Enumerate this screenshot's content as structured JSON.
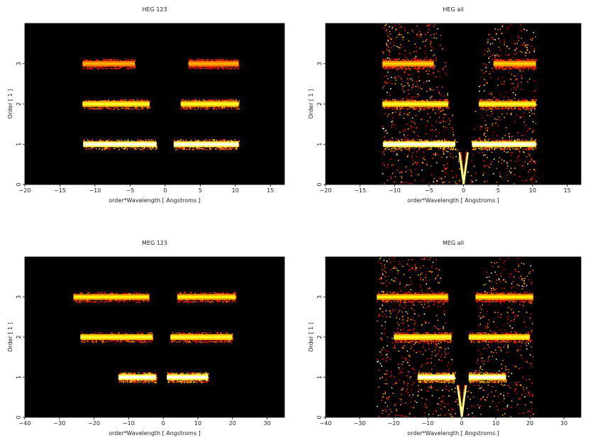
{
  "page": {
    "background": "#ffffff"
  },
  "colors": {
    "plot_background": "#000000",
    "hot_core": "#ffffff",
    "hot_mid": "#ffd27a",
    "hot_edge": "#c04a00",
    "hot_dim": "#6a1800"
  },
  "chart_data": [
    {
      "type": "heatmap",
      "title": "HEG 123",
      "xlabel": "order*Wavelength [ Angstroms ]",
      "ylabel": "Order [ 1 ]",
      "xlim": [
        -20,
        17
      ],
      "ylim": [
        0,
        4
      ],
      "xticks": [
        -20,
        -15,
        -10,
        -5,
        0,
        5,
        10,
        15
      ],
      "yticks": [
        0,
        1,
        2,
        3
      ],
      "colormap": "hot",
      "grid": false,
      "bands": [
        {
          "order": 1,
          "x_start": -11.7,
          "x_end": -1.2,
          "peak": 1.0
        },
        {
          "order": 1,
          "x_start": 1.2,
          "x_end": 10.5,
          "peak": 1.0
        },
        {
          "order": 2,
          "x_start": -11.8,
          "x_end": -2.2,
          "peak": 0.8
        },
        {
          "order": 2,
          "x_start": 2.2,
          "x_end": 10.5,
          "peak": 0.8
        },
        {
          "order": 3,
          "x_start": -11.8,
          "x_end": -4.3,
          "peak": 0.65
        },
        {
          "order": 3,
          "x_start": 3.3,
          "x_end": 10.5,
          "peak": 0.65
        }
      ],
      "background_noise": 0.0,
      "zeroth_order": false
    },
    {
      "type": "heatmap",
      "title": "HEG all",
      "xlabel": "order*Wavelength [ Angstroms ]",
      "ylabel": "Order [ 1 ]",
      "xlim": [
        -20,
        17
      ],
      "ylim": [
        0,
        4
      ],
      "xticks": [
        -20,
        -15,
        -10,
        -5,
        0,
        5,
        10,
        15
      ],
      "yticks": [
        0,
        1,
        2,
        3
      ],
      "colormap": "hot",
      "grid": false,
      "bands": [
        {
          "order": 1,
          "x_start": -11.7,
          "x_end": -1.2,
          "peak": 1.0
        },
        {
          "order": 1,
          "x_start": 1.2,
          "x_end": 10.5,
          "peak": 1.0
        },
        {
          "order": 2,
          "x_start": -11.8,
          "x_end": -2.2,
          "peak": 0.8
        },
        {
          "order": 2,
          "x_start": 2.2,
          "x_end": 10.5,
          "peak": 0.8
        },
        {
          "order": 3,
          "x_start": -11.8,
          "x_end": -4.3,
          "peak": 0.7
        },
        {
          "order": 3,
          "x_start": 4.3,
          "x_end": 10.5,
          "peak": 0.7
        }
      ],
      "background_noise": 0.35,
      "zeroth_order": true
    },
    {
      "type": "heatmap",
      "title": "MEG 123",
      "xlabel": "order*Wavelength [ Angstroms ]",
      "ylabel": "Order [ 1 ]",
      "xlim": [
        -40,
        35
      ],
      "ylim": [
        0,
        4
      ],
      "xticks": [
        -40,
        -30,
        -20,
        -10,
        0,
        10,
        20,
        30
      ],
      "yticks": [
        0,
        1,
        2,
        3
      ],
      "colormap": "hot",
      "grid": false,
      "bands": [
        {
          "order": 1,
          "x_start": -13,
          "x_end": -2,
          "peak": 1.0
        },
        {
          "order": 1,
          "x_start": 1,
          "x_end": 13,
          "peak": 1.0
        },
        {
          "order": 2,
          "x_start": -24,
          "x_end": -3,
          "peak": 0.8
        },
        {
          "order": 2,
          "x_start": 2,
          "x_end": 20,
          "peak": 0.8
        },
        {
          "order": 3,
          "x_start": -26,
          "x_end": -4,
          "peak": 0.75
        },
        {
          "order": 3,
          "x_start": 4,
          "x_end": 21,
          "peak": 0.75
        }
      ],
      "background_noise": 0.0,
      "zeroth_order": false
    },
    {
      "type": "heatmap",
      "title": "MEG all",
      "xlabel": "order*Wavelength [ Angstroms ]",
      "ylabel": "Order [ 1 ]",
      "xlim": [
        -40,
        35
      ],
      "ylim": [
        0,
        4
      ],
      "xticks": [
        -40,
        -30,
        -20,
        -10,
        0,
        10,
        20,
        30
      ],
      "yticks": [
        0,
        1,
        2,
        3
      ],
      "colormap": "hot",
      "grid": false,
      "bands": [
        {
          "order": 1,
          "x_start": -13,
          "x_end": -2,
          "peak": 1.0
        },
        {
          "order": 1,
          "x_start": 2,
          "x_end": 13,
          "peak": 1.0
        },
        {
          "order": 2,
          "x_start": -20,
          "x_end": -3,
          "peak": 0.8
        },
        {
          "order": 2,
          "x_start": 2,
          "x_end": 20,
          "peak": 0.8
        },
        {
          "order": 3,
          "x_start": -25,
          "x_end": -4,
          "peak": 0.75
        },
        {
          "order": 3,
          "x_start": 4,
          "x_end": 21,
          "peak": 0.75
        }
      ],
      "background_noise": 0.35,
      "zeroth_order": true
    }
  ]
}
